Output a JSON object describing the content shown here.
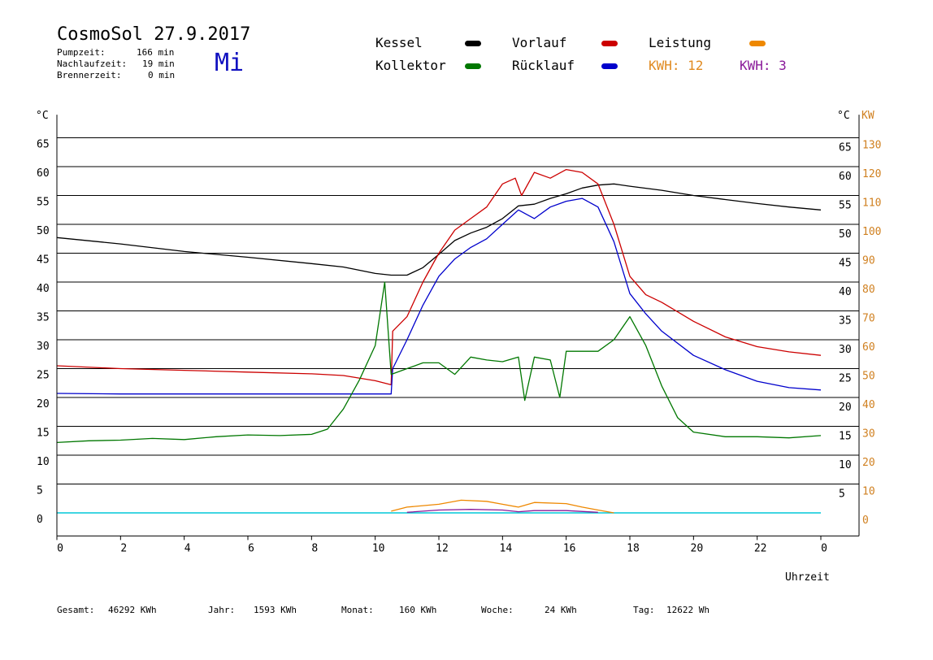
{
  "header": {
    "title": "CosmoSol 27.9.2017",
    "weekday": "Mi",
    "stats": [
      {
        "label": "Pumpzeit:",
        "value": "166 min"
      },
      {
        "label": "Nachlaufzeit:",
        "value": "19 min"
      },
      {
        "label": "Brennerzeit:",
        "value": "0 min"
      }
    ]
  },
  "legend": {
    "kessel": "Kessel",
    "vorlauf": "Vorlauf",
    "leistung": "Leistung",
    "kollektor": "Kollektor",
    "ruecklauf": "Rücklauf",
    "kwh1": "KWH: 12",
    "kwh2": "KWH: 3"
  },
  "colors": {
    "kessel": "#000000",
    "vorlauf": "#cc0000",
    "ruecklauf": "#0000cc",
    "kollektor": "#007700",
    "leistung": "#ee8800",
    "kwh2": "#8a1a9a",
    "zero": "#00c8d8",
    "kw_axis": "#d08020"
  },
  "footer": {
    "gesamt_label": "Gesamt:",
    "gesamt_value": "46292 KWh",
    "jahr_label": "Jahr:",
    "jahr_value": "1593 KWh",
    "monat_label": "Monat:",
    "monat_value": "160 KWh",
    "woche_label": "Woche:",
    "woche_value": "24 KWh",
    "tag_label": "Tag:",
    "tag_value": "12622 Wh"
  },
  "chart_data": {
    "type": "line",
    "x_label": "Uhrzeit",
    "y_left_unit": "°C",
    "y_right_unit_temp": "°C",
    "y_right_unit_power": "KW",
    "xlim": [
      0,
      24
    ],
    "x_ticks": [
      "0",
      "2",
      "4",
      "6",
      "8",
      "10",
      "12",
      "14",
      "16",
      "18",
      "20",
      "22",
      "0"
    ],
    "y_left_ticks": [
      0,
      5,
      10,
      15,
      20,
      25,
      30,
      35,
      40,
      45,
      50,
      55,
      60,
      65
    ],
    "y_right_temp_ticks": [
      5,
      10,
      15,
      20,
      25,
      30,
      35,
      40,
      45,
      50,
      55,
      60,
      65
    ],
    "y_right_kw_ticks": [
      0,
      10,
      20,
      30,
      40,
      50,
      60,
      70,
      80,
      90,
      100,
      110,
      120,
      130
    ],
    "ylim": [
      -4,
      69
    ],
    "grid": true,
    "series": [
      {
        "name": "Kessel",
        "color": "#000000",
        "points": [
          [
            0,
            47.7
          ],
          [
            2,
            46.6
          ],
          [
            4,
            45.3
          ],
          [
            6,
            44.3
          ],
          [
            8,
            43.2
          ],
          [
            9,
            42.6
          ],
          [
            10,
            41.5
          ],
          [
            10.5,
            41.2
          ],
          [
            11,
            41.2
          ],
          [
            11.5,
            42.5
          ],
          [
            12,
            44.8
          ],
          [
            12.5,
            47.2
          ],
          [
            13,
            48.5
          ],
          [
            13.5,
            49.5
          ],
          [
            14,
            51
          ],
          [
            14.5,
            53.2
          ],
          [
            15,
            53.5
          ],
          [
            15.5,
            54.5
          ],
          [
            16,
            55.3
          ],
          [
            16.5,
            56.3
          ],
          [
            17,
            56.8
          ],
          [
            17.5,
            57
          ],
          [
            18,
            56.6
          ],
          [
            19,
            55.9
          ],
          [
            20,
            55
          ],
          [
            21,
            54.3
          ],
          [
            22,
            53.6
          ],
          [
            23,
            53
          ],
          [
            24,
            52.5
          ]
        ]
      },
      {
        "name": "Vorlauf",
        "color": "#cc0000",
        "points": [
          [
            0,
            25.5
          ],
          [
            2,
            25
          ],
          [
            4,
            24.7
          ],
          [
            6,
            24.4
          ],
          [
            8,
            24.1
          ],
          [
            9,
            23.8
          ],
          [
            10,
            22.9
          ],
          [
            10.5,
            22.2
          ],
          [
            10.55,
            31.5
          ],
          [
            11,
            34
          ],
          [
            11.5,
            40
          ],
          [
            12,
            45
          ],
          [
            12.5,
            49
          ],
          [
            13,
            51
          ],
          [
            13.5,
            53
          ],
          [
            14,
            57
          ],
          [
            14.4,
            58
          ],
          [
            14.6,
            55
          ],
          [
            15,
            59
          ],
          [
            15.5,
            58
          ],
          [
            16,
            59.5
          ],
          [
            16.5,
            59
          ],
          [
            17,
            57
          ],
          [
            17.5,
            50
          ],
          [
            18,
            41
          ],
          [
            18.5,
            37.8
          ],
          [
            19,
            36.5
          ],
          [
            20,
            33.2
          ],
          [
            21,
            30.5
          ],
          [
            22,
            28.8
          ],
          [
            23,
            27.9
          ],
          [
            24,
            27.3
          ]
        ]
      },
      {
        "name": "Rücklauf",
        "color": "#0000cc",
        "points": [
          [
            0,
            20.7
          ],
          [
            2,
            20.6
          ],
          [
            4,
            20.6
          ],
          [
            6,
            20.6
          ],
          [
            8,
            20.6
          ],
          [
            9,
            20.6
          ],
          [
            10.5,
            20.6
          ],
          [
            10.55,
            25
          ],
          [
            11,
            30
          ],
          [
            11.5,
            36
          ],
          [
            12,
            41
          ],
          [
            12.5,
            44
          ],
          [
            13,
            46
          ],
          [
            13.5,
            47.5
          ],
          [
            14,
            50
          ],
          [
            14.5,
            52.5
          ],
          [
            15,
            51
          ],
          [
            15.5,
            53
          ],
          [
            16,
            54
          ],
          [
            16.5,
            54.5
          ],
          [
            17,
            53
          ],
          [
            17.5,
            47
          ],
          [
            18,
            38
          ],
          [
            18.5,
            34.5
          ],
          [
            19,
            31.5
          ],
          [
            20,
            27.3
          ],
          [
            21,
            24.8
          ],
          [
            22,
            22.8
          ],
          [
            23,
            21.7
          ],
          [
            24,
            21.3
          ]
        ]
      },
      {
        "name": "Kollektor",
        "color": "#007700",
        "points": [
          [
            0,
            12.2
          ],
          [
            1,
            12.5
          ],
          [
            2,
            12.6
          ],
          [
            3,
            12.9
          ],
          [
            4,
            12.7
          ],
          [
            5,
            13.2
          ],
          [
            6,
            13.5
          ],
          [
            7,
            13.4
          ],
          [
            8,
            13.6
          ],
          [
            8.5,
            14.5
          ],
          [
            9,
            18
          ],
          [
            9.5,
            23
          ],
          [
            10,
            29
          ],
          [
            10.3,
            40
          ],
          [
            10.5,
            24
          ],
          [
            11,
            25
          ],
          [
            11.5,
            26
          ],
          [
            12,
            26
          ],
          [
            12.5,
            24
          ],
          [
            13,
            27
          ],
          [
            13.5,
            26.5
          ],
          [
            14,
            26.2
          ],
          [
            14.5,
            27
          ],
          [
            14.7,
            19.5
          ],
          [
            15,
            27
          ],
          [
            15.5,
            26.5
          ],
          [
            15.8,
            20
          ],
          [
            16,
            28
          ],
          [
            16.5,
            28
          ],
          [
            17,
            28
          ],
          [
            17.5,
            30
          ],
          [
            18,
            34
          ],
          [
            18.5,
            29
          ],
          [
            19,
            22
          ],
          [
            19.5,
            16.5
          ],
          [
            20,
            14
          ],
          [
            21,
            13.2
          ],
          [
            22,
            13.2
          ],
          [
            23,
            13
          ],
          [
            24,
            13.4
          ]
        ]
      },
      {
        "name": "Leistung",
        "color": "#ee8800",
        "points": [
          [
            10.5,
            0.3
          ],
          [
            11,
            1
          ],
          [
            12,
            1.5
          ],
          [
            12.7,
            2.2
          ],
          [
            13.5,
            2
          ],
          [
            14,
            1.5
          ],
          [
            14.5,
            1
          ],
          [
            15,
            1.8
          ],
          [
            16,
            1.6
          ],
          [
            16.5,
            1
          ],
          [
            17,
            0.5
          ],
          [
            17.5,
            0
          ]
        ]
      },
      {
        "name": "KWH 2",
        "color": "#8a1a9a",
        "points": [
          [
            11,
            0.1
          ],
          [
            12,
            0.5
          ],
          [
            13,
            0.6
          ],
          [
            14,
            0.5
          ],
          [
            14.5,
            0.2
          ],
          [
            15,
            0.4
          ],
          [
            16,
            0.4
          ],
          [
            17,
            0.1
          ]
        ]
      }
    ]
  }
}
